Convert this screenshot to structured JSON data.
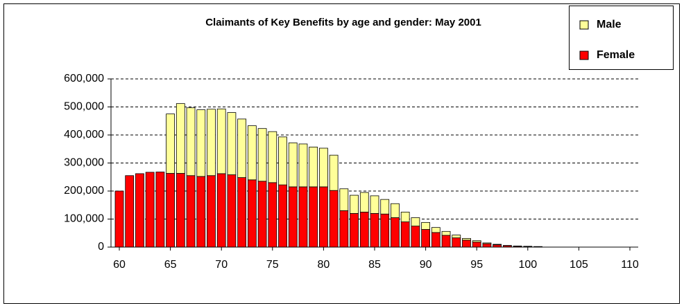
{
  "chart_data": {
    "type": "bar",
    "stacked": true,
    "title": "Claimants of Key Benefits by age and gender: May 2001",
    "x": [
      60,
      61,
      62,
      63,
      64,
      65,
      66,
      67,
      68,
      69,
      70,
      71,
      72,
      73,
      74,
      75,
      76,
      77,
      78,
      79,
      80,
      81,
      82,
      83,
      84,
      85,
      86,
      87,
      88,
      89,
      90,
      91,
      92,
      93,
      94,
      95,
      96,
      97,
      98,
      99,
      100,
      101
    ],
    "series": [
      {
        "name": "Female",
        "color": "#ff0000",
        "values": [
          200000,
          255000,
          262000,
          267000,
          268000,
          263000,
          263000,
          255000,
          252000,
          255000,
          262000,
          258000,
          248000,
          240000,
          235000,
          230000,
          222000,
          215000,
          215000,
          215000,
          215000,
          202000,
          130000,
          120000,
          125000,
          120000,
          118000,
          105000,
          90000,
          75000,
          63000,
          52000,
          42000,
          33000,
          25000,
          18000,
          12000,
          8000,
          5000,
          3000,
          2000,
          2000
        ]
      },
      {
        "name": "Male",
        "color": "#ffff99",
        "values": [
          0,
          0,
          0,
          0,
          0,
          212000,
          249000,
          242000,
          238000,
          237000,
          231000,
          222000,
          209000,
          193000,
          188000,
          182000,
          171000,
          157000,
          153000,
          142000,
          138000,
          126000,
          78000,
          65000,
          70000,
          63000,
          52000,
          50000,
          35000,
          30000,
          25000,
          18000,
          14000,
          10000,
          6000,
          5000,
          3000,
          2000,
          1000,
          1000,
          1000,
          0
        ]
      }
    ],
    "xlim": [
      60,
      110
    ],
    "xticks": [
      60,
      65,
      70,
      75,
      80,
      85,
      90,
      95,
      100,
      105,
      110
    ],
    "ylim": [
      0,
      600000
    ],
    "yticks": [
      0,
      {
        "value": 100000,
        "label": "100,000"
      },
      {
        "value": 200000,
        "label": "200,000"
      },
      {
        "value": 300000,
        "label": "300,000"
      },
      {
        "value": 400000,
        "label": "400,000"
      },
      {
        "value": 500000,
        "label": "500,000"
      },
      {
        "value": 600000,
        "label": "600,000"
      }
    ],
    "grid": true,
    "legend": "top-right"
  }
}
